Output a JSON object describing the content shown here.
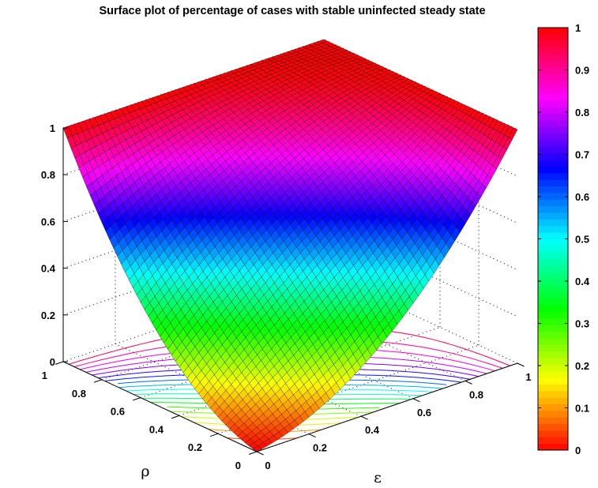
{
  "chart_data": {
    "type": "surface",
    "title": "Surface plot of percentage of cases with stable uninfected steady state",
    "xlabel": "ε",
    "ylabel": "ρ",
    "zlabel": "",
    "xlim": [
      0,
      1
    ],
    "ylim": [
      0,
      1
    ],
    "zlim": [
      0,
      1
    ],
    "x_ticks": [
      "0",
      "0.2",
      "0.4",
      "0.6",
      "0.8",
      "1"
    ],
    "y_ticks": [
      "0",
      "0.2",
      "0.4",
      "0.6",
      "0.8",
      "1"
    ],
    "z_ticks": [
      "0",
      "0.2",
      "0.4",
      "0.6",
      "0.8",
      "1"
    ],
    "colorbar_ticks": [
      "0",
      "0.1",
      "0.2",
      "0.3",
      "0.4",
      "0.5",
      "0.6",
      "0.7",
      "0.8",
      "0.9",
      "1"
    ],
    "colormap": "hsv",
    "grid": true,
    "contours_on_floor": true,
    "grid_resolution": 50,
    "surface_samples": {
      "x": [
        0,
        0.5,
        1
      ],
      "y": [
        0,
        0.5,
        1
      ],
      "z": [
        [
          0.0,
          0.3,
          1.0
        ],
        [
          0.3,
          0.75,
          1.0
        ],
        [
          1.0,
          1.0,
          1.0
        ]
      ]
    }
  }
}
